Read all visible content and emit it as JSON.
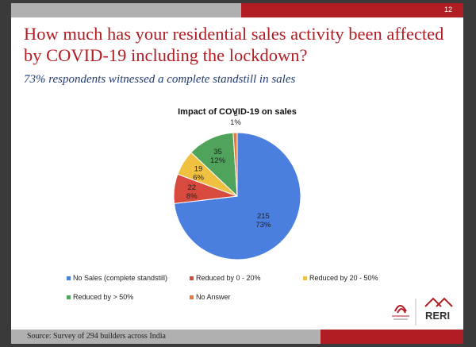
{
  "slide": {
    "page_number": "12",
    "title": "How much has your residential sales activity been affected by COVID-19 including the lockdown?",
    "subtitle": "73% respondents witnessed a complete standstill in sales",
    "source": "Source: Survey of 294 builders across India",
    "logo_text": "RERI"
  },
  "colors": {
    "accent_red": "#b21d24",
    "subtitle_blue": "#1f3b73",
    "bar_grey": "#b0b0b0"
  },
  "chart_data": {
    "type": "pie",
    "title": "Impact of COVID-19 on sales",
    "categories": [
      "No Sales (complete standstill)",
      "Reduced by 0 - 20%",
      "Reduced by 20 - 50%",
      "Reduced by > 50%",
      "No Answer"
    ],
    "values": [
      215,
      22,
      19,
      35,
      3
    ],
    "percent_labels": [
      "73%",
      "8%",
      "6%",
      "12%",
      "1%"
    ],
    "colors": [
      "#4a7fe0",
      "#d84a3d",
      "#f0c040",
      "#4fa35a",
      "#e8793a"
    ],
    "legend_position": "bottom"
  }
}
